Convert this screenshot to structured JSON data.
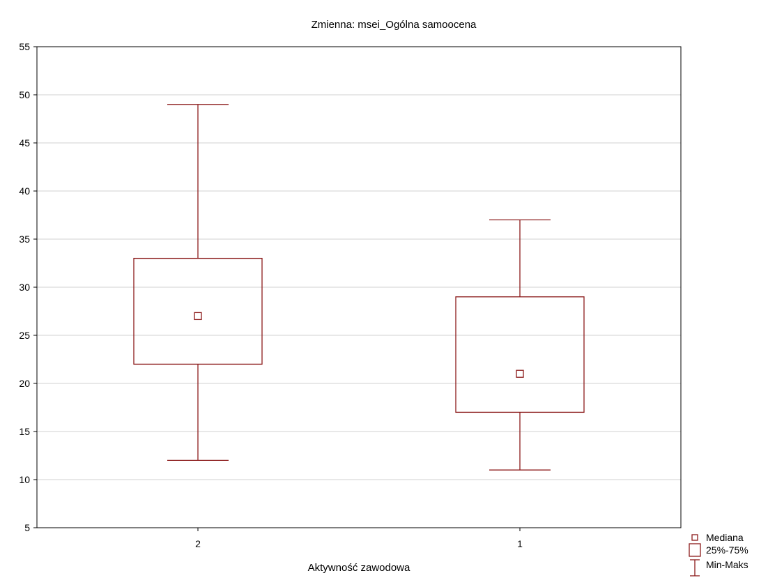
{
  "chart_data": {
    "type": "boxplot",
    "title": "Zmienna:  msei_Ogólna samoocena",
    "xlabel": "Aktywność zawodowa",
    "ylabel": "",
    "ylim": [
      5,
      55
    ],
    "yticks": [
      5,
      10,
      15,
      20,
      25,
      30,
      35,
      40,
      45,
      50,
      55
    ],
    "grid": true,
    "categories": [
      "2",
      "1"
    ],
    "boxes": [
      {
        "category": "2",
        "min": 12,
        "q1": 22,
        "median": 27,
        "q3": 33,
        "max": 49
      },
      {
        "category": "1",
        "min": 11,
        "q1": 17,
        "median": 21,
        "q3": 29,
        "max": 37
      }
    ],
    "legend": {
      "placement": "bottom-right",
      "entries": [
        {
          "label": "Mediana",
          "symbol": "median-square-icon"
        },
        {
          "label": "25%-75%",
          "symbol": "box-icon"
        },
        {
          "label": "Min-Maks",
          "symbol": "whisker-icon"
        }
      ]
    },
    "colors": {
      "series": "#8b1a1a",
      "grid": "#d0d0d0",
      "axis": "#000000"
    }
  }
}
